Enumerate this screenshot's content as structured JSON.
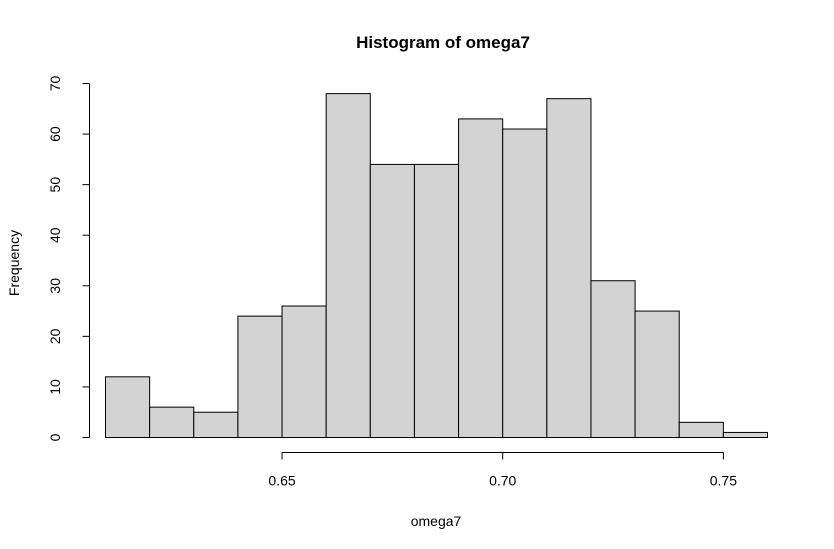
{
  "chart_data": {
    "type": "bar",
    "subtype": "histogram",
    "title": "Histogram of omega7",
    "xlabel": "omega7",
    "ylabel": "Frequency",
    "bins": [
      {
        "start": 0.61,
        "end": 0.62,
        "count": 12
      },
      {
        "start": 0.62,
        "end": 0.63,
        "count": 6
      },
      {
        "start": 0.63,
        "end": 0.64,
        "count": 5
      },
      {
        "start": 0.64,
        "end": 0.65,
        "count": 24
      },
      {
        "start": 0.65,
        "end": 0.66,
        "count": 26
      },
      {
        "start": 0.66,
        "end": 0.67,
        "count": 68
      },
      {
        "start": 0.67,
        "end": 0.68,
        "count": 54
      },
      {
        "start": 0.68,
        "end": 0.69,
        "count": 54
      },
      {
        "start": 0.69,
        "end": 0.7,
        "count": 63
      },
      {
        "start": 0.7,
        "end": 0.71,
        "count": 61
      },
      {
        "start": 0.71,
        "end": 0.72,
        "count": 67
      },
      {
        "start": 0.72,
        "end": 0.73,
        "count": 31
      },
      {
        "start": 0.73,
        "end": 0.74,
        "count": 25
      },
      {
        "start": 0.74,
        "end": 0.75,
        "count": 3
      },
      {
        "start": 0.75,
        "end": 0.76,
        "count": 1
      }
    ],
    "xlim": [
      0.61,
      0.76
    ],
    "ylim": [
      0,
      70
    ],
    "x_ticks": [
      0.65,
      0.7,
      0.75
    ],
    "x_tick_labels": [
      "0.65",
      "0.70",
      "0.75"
    ],
    "y_ticks": [
      0,
      10,
      20,
      30,
      40,
      50,
      60,
      70
    ],
    "y_tick_labels": [
      "0",
      "10",
      "20",
      "30",
      "40",
      "50",
      "60",
      "70"
    ],
    "bar_color": "#d3d3d3",
    "edge_color": "#000000",
    "grid": false,
    "legend": "none"
  }
}
